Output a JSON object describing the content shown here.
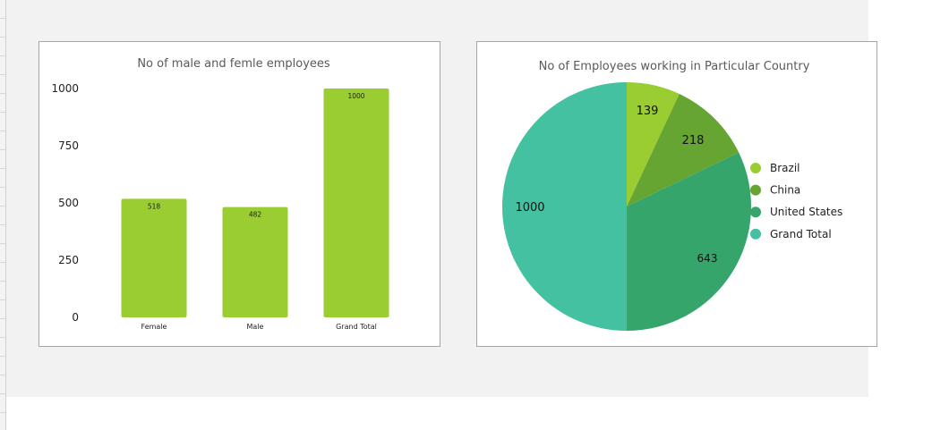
{
  "chart_data": [
    {
      "type": "bar",
      "title": "No of male and femle employees",
      "categories": [
        "Female",
        "Male",
        "Grand Total"
      ],
      "values": [
        518,
        482,
        1000
      ],
      "data_labels": [
        "518",
        "482",
        "1000"
      ],
      "yticks": [
        0,
        250,
        500,
        750,
        1000
      ],
      "ytick_labels": [
        "0",
        "250",
        "500",
        "750",
        "1000"
      ],
      "ylim": [
        0,
        1000
      ],
      "xlabel": "",
      "ylabel": "",
      "grid": false,
      "color": "#9acd32"
    },
    {
      "type": "pie",
      "title": "No of Employees working in Particular Country",
      "labels": [
        "Brazil",
        "China",
        "United States",
        "Grand Total"
      ],
      "values": [
        139,
        218,
        643,
        1000
      ],
      "data_labels": [
        "139",
        "218",
        "643",
        "1000"
      ],
      "colors": [
        "#9acd32",
        "#66a532",
        "#36a56c",
        "#44c1a0"
      ],
      "legend": "right"
    }
  ]
}
